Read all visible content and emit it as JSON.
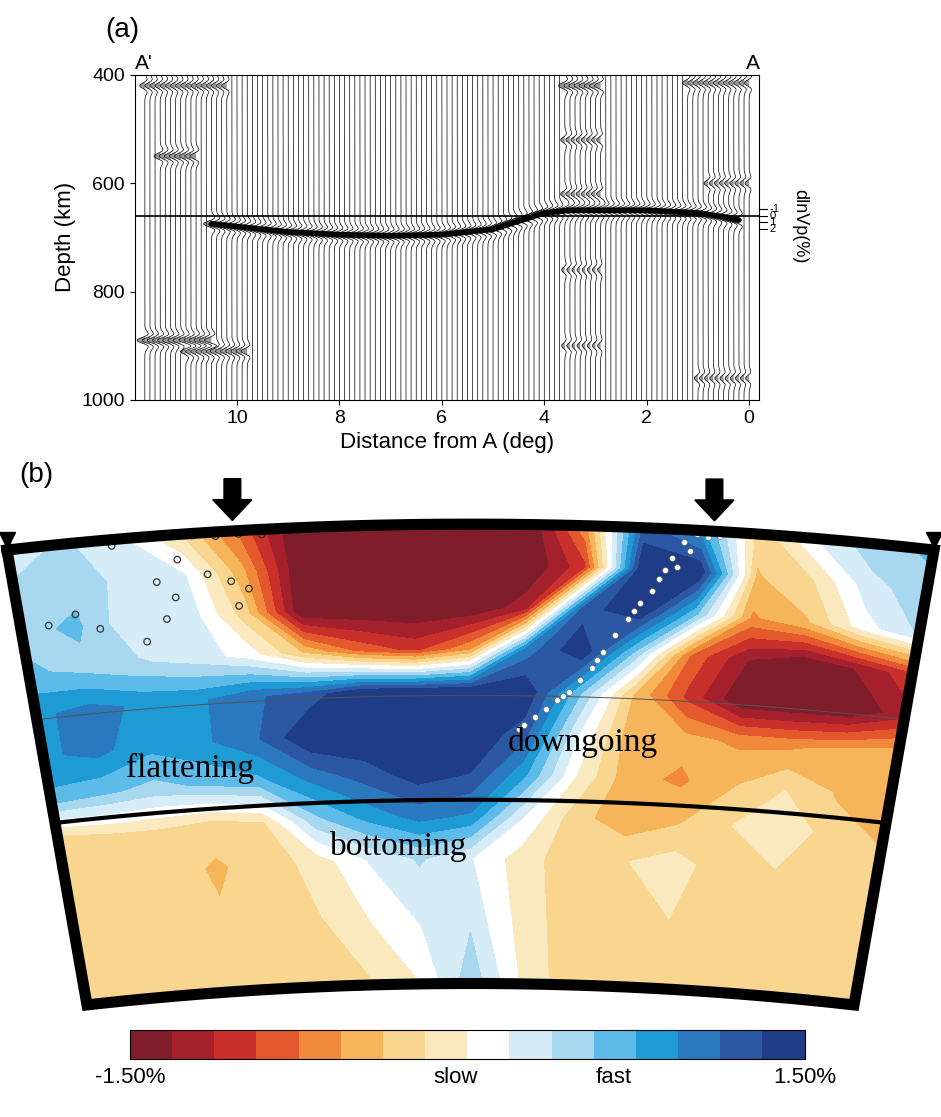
{
  "chart_data": [
    {
      "type": "wiggle",
      "label": "(a)",
      "left_label": "A'",
      "right_label": "A",
      "xlabel": "Distance from A (deg)",
      "ylabel": "Depth (km)",
      "xlim": [
        12,
        -0.2
      ],
      "xticks": [
        10,
        8,
        6,
        4,
        2,
        0
      ],
      "ylim": [
        1000,
        400
      ],
      "yticks": [
        400,
        600,
        800,
        1000
      ],
      "trace_distances": [
        0.0,
        0.1,
        0.2,
        0.3,
        0.4,
        0.5,
        0.6,
        0.7,
        0.8,
        0.9,
        1.0,
        1.1,
        1.2,
        1.3,
        1.4,
        1.5,
        1.6,
        1.7,
        1.8,
        1.9,
        2.0,
        2.1,
        2.2,
        2.3,
        2.4,
        2.5,
        2.6,
        2.7,
        2.8,
        2.9,
        3.0,
        3.1,
        3.2,
        3.3,
        3.4,
        3.5,
        3.6,
        3.7,
        3.8,
        3.9,
        4.0,
        4.1,
        4.2,
        4.3,
        4.4,
        4.5,
        4.6,
        4.7,
        4.8,
        4.9,
        5.0,
        5.1,
        5.2,
        5.3,
        5.4,
        5.5,
        5.6,
        5.7,
        5.8,
        5.9,
        6.0,
        6.1,
        6.2,
        6.3,
        6.4,
        6.5,
        6.6,
        6.7,
        6.8,
        6.9,
        7.0,
        7.1,
        7.2,
        7.3,
        7.4,
        7.5,
        7.6,
        7.7,
        7.8,
        7.9,
        8.0,
        8.1,
        8.2,
        8.3,
        8.4,
        8.5,
        8.6,
        8.7,
        8.8,
        8.9,
        9.0,
        9.1,
        9.2,
        9.3,
        9.4,
        9.5,
        9.6,
        9.7,
        9.8,
        9.9,
        10.0,
        10.1,
        10.2,
        10.3,
        10.4,
        10.5,
        10.6,
        10.7,
        10.8,
        10.9,
        11.0,
        11.1,
        11.2,
        11.3,
        11.4,
        11.5,
        11.6,
        11.7,
        11.8
      ],
      "reference_depth": 660,
      "discontinuity": {
        "x": [
          10.5,
          9.0,
          8.0,
          7.0,
          6.0,
          5.0,
          4.5,
          4.0,
          3.5,
          3.0,
          2.0,
          1.0,
          0.5,
          0.2
        ],
        "depth": [
          675,
          690,
          695,
          697,
          695,
          685,
          670,
          655,
          650,
          650,
          650,
          655,
          662,
          668
        ],
        "amp": 1.5
      },
      "pulses": [
        {
          "x_range": [
            0.0,
            1.2
          ],
          "depth": 415,
          "amp": 1.0
        },
        {
          "x_range": [
            2.9,
            3.6
          ],
          "depth": 420,
          "amp": 1.2
        },
        {
          "x_range": [
            10.2,
            11.8
          ],
          "depth": 420,
          "amp": 1.0
        },
        {
          "x_range": [
            10.8,
            11.5
          ],
          "depth": 550,
          "amp": 1.2
        },
        {
          "x_range": [
            10.5,
            11.8
          ],
          "depth": 890,
          "amp": 1.5
        },
        {
          "x_range": [
            9.8,
            11.0
          ],
          "depth": 910,
          "amp": 1.2
        },
        {
          "x_range": [
            2.9,
            3.6
          ],
          "depth": 520,
          "amp": 0.8
        },
        {
          "x_range": [
            2.9,
            3.6
          ],
          "depth": 620,
          "amp": 0.8
        },
        {
          "x_range": [
            2.9,
            3.6
          ],
          "depth": 760,
          "amp": 0.6
        },
        {
          "x_range": [
            2.9,
            3.6
          ],
          "depth": 900,
          "amp": 0.6
        },
        {
          "x_range": [
            0.0,
            0.8
          ],
          "depth": 600,
          "amp": 0.8
        },
        {
          "x_range": [
            0.0,
            1.0
          ],
          "depth": 960,
          "amp": 0.7
        }
      ],
      "scale_label": "dlnVp(%)",
      "scale_ticks": [
        -1,
        0,
        1,
        2
      ]
    },
    {
      "type": "heatmap",
      "label": "(b)",
      "distance_range": [
        0,
        16
      ],
      "depth_range": [
        0,
        1100
      ],
      "distances": [
        0,
        1,
        2,
        3,
        4,
        5,
        6,
        7,
        8,
        9,
        10,
        11,
        12,
        13,
        14,
        15,
        16
      ],
      "depths": [
        0,
        100,
        200,
        300,
        400,
        500,
        600,
        700,
        800,
        1100
      ],
      "cells": [
        [
          0.3,
          0.4,
          0.2,
          -0.2,
          -0.8,
          -1.5,
          -1.5,
          -1.5,
          -1.5,
          -1.5,
          -0.6,
          1.2,
          0.8,
          -0.3,
          0.2,
          0.5,
          0.6
        ],
        [
          0.4,
          0.5,
          0.3,
          0.2,
          -0.5,
          -1.5,
          -1.5,
          -1.5,
          -1.5,
          -1.5,
          -1.0,
          1.5,
          1.5,
          -0.4,
          -0.2,
          0.3,
          0.5
        ],
        [
          0.5,
          0.6,
          0.2,
          0.3,
          -0.3,
          -1.5,
          -1.5,
          -1.5,
          -1.5,
          -1.2,
          1.2,
          1.5,
          0.6,
          -0.6,
          -0.4,
          0.1,
          0.4
        ],
        [
          0.6,
          0.5,
          0.4,
          0.3,
          0.1,
          -0.4,
          -0.8,
          -1.0,
          -0.6,
          1.0,
          1.5,
          0.5,
          -0.8,
          -1.3,
          -1.5,
          -1.3,
          -1.0
        ],
        [
          0.9,
          1.0,
          0.9,
          0.9,
          1.1,
          1.2,
          1.5,
          1.5,
          1.5,
          1.5,
          0.6,
          -0.4,
          -1.0,
          -1.5,
          -1.5,
          -1.5,
          -1.2
        ],
        [
          0.9,
          1.0,
          0.8,
          0.9,
          1.1,
          1.5,
          1.5,
          1.5,
          1.5,
          1.2,
          0.2,
          -0.5,
          -0.5,
          -0.6,
          -0.6,
          -0.5,
          -0.4
        ],
        [
          0.7,
          0.6,
          0.5,
          0.6,
          0.7,
          1.0,
          1.2,
          1.4,
          1.3,
          0.8,
          0.0,
          -0.5,
          -0.6,
          -0.4,
          -0.2,
          -0.4,
          -0.5
        ],
        [
          -0.3,
          -0.2,
          -0.2,
          -0.3,
          -0.2,
          0.5,
          0.8,
          1.0,
          0.9,
          0.2,
          -0.3,
          -0.5,
          -0.4,
          -0.2,
          0.0,
          -0.3,
          -0.4
        ],
        [
          -0.3,
          -0.2,
          -0.3,
          -0.4,
          -0.3,
          -0.1,
          0.2,
          0.4,
          0.2,
          -0.1,
          -0.3,
          -0.2,
          -0.1,
          -0.3,
          -0.2,
          -0.2,
          -0.3
        ],
        [
          -0.2,
          -0.3,
          -0.2,
          -0.3,
          -0.2,
          -0.3,
          -0.2,
          0.0,
          0.5,
          0.0,
          -0.3,
          -0.2,
          -0.3,
          -0.2,
          -0.3,
          -0.2,
          -0.2
        ]
      ],
      "color_range": [
        -1.5,
        1.5
      ],
      "colors": [
        "#7f1d2b",
        "#a3202c",
        "#c9302c",
        "#e4582e",
        "#f08a3a",
        "#f6b55a",
        "#f9d690",
        "#fae8bf",
        "#ffffff",
        "#d6ecf7",
        "#a8d7f0",
        "#5cbbe8",
        "#1e9ad5",
        "#2a78bd",
        "#2b57a3",
        "#1f3c86"
      ],
      "colorbar_ticks": [
        {
          "value": -1.5,
          "label": "-1.50%"
        },
        {
          "value": -0.05,
          "label": "slow"
        },
        {
          "value": 0.65,
          "label": "fast"
        },
        {
          "value": 1.5,
          "label": "1.50%"
        }
      ],
      "thin_line_depth": 410,
      "thick_line_depth": 660,
      "annotations": [
        "flattening",
        "bottoming",
        "downgoing"
      ],
      "events": [
        {
          "marker": "circle",
          "color": "#ffffff",
          "points": [
            [
              11.9,
              10
            ],
            [
              11.7,
              30
            ],
            [
              11.8,
              50
            ],
            [
              11.5,
              70
            ],
            [
              11.6,
              90
            ],
            [
              11.3,
              120
            ],
            [
              11.2,
              150
            ],
            [
              11.0,
              180
            ],
            [
              10.8,
              220
            ],
            [
              10.6,
              260
            ],
            [
              10.4,
              300
            ],
            [
              10.2,
              340
            ],
            [
              10.0,
              370
            ],
            [
              9.8,
              400
            ],
            [
              9.6,
              420
            ],
            [
              9.4,
              440
            ],
            [
              9.2,
              460
            ],
            [
              9.0,
              480
            ],
            [
              8.9,
              490
            ],
            [
              12.1,
              15
            ],
            [
              12.3,
              10
            ],
            [
              11.4,
              100
            ],
            [
              10.9,
              200
            ],
            [
              10.3,
              320
            ],
            [
              9.7,
              410
            ]
          ]
        },
        {
          "marker": "open_circle",
          "color": "#333333",
          "points": [
            [
              3.2,
              5
            ],
            [
              3.6,
              10
            ],
            [
              4.0,
              8
            ],
            [
              4.4,
              12
            ],
            [
              1.8,
              15
            ],
            [
              2.9,
              60
            ],
            [
              2.5,
              110
            ],
            [
              3.4,
              100
            ],
            [
              2.8,
              150
            ],
            [
              3.8,
              120
            ],
            [
              4.1,
              140
            ],
            [
              1.0,
              170
            ],
            [
              0.5,
              190
            ],
            [
              2.6,
              200
            ],
            [
              3.9,
              180
            ],
            [
              2.2,
              250
            ],
            [
              1.4,
              210
            ]
          ]
        }
      ]
    }
  ]
}
